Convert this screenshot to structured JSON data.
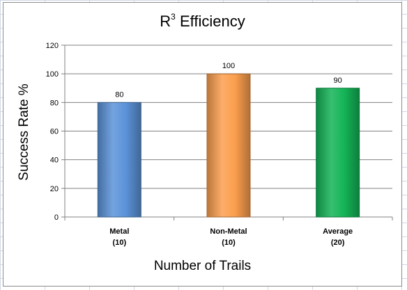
{
  "chart_data": {
    "type": "bar",
    "title_main": "R",
    "title_sup": "3",
    "title_rest": " Efficiency",
    "xlabel": "Number of Trails",
    "ylabel": "Success Rate %",
    "categories": [
      {
        "line1": "Metal",
        "line2": "(10)"
      },
      {
        "line1": "Non-Metal",
        "line2": "(10)"
      },
      {
        "line1": "Average",
        "line2": "(20)"
      }
    ],
    "values": [
      80,
      100,
      90
    ],
    "data_labels": [
      "80",
      "100",
      "90"
    ],
    "colors": [
      "#5b93d9",
      "#fb9e4e",
      "#14b457"
    ],
    "ylim": [
      0,
      120
    ],
    "yticks": [
      0,
      20,
      40,
      60,
      80,
      100,
      120
    ],
    "grid": true,
    "legend": "none"
  }
}
